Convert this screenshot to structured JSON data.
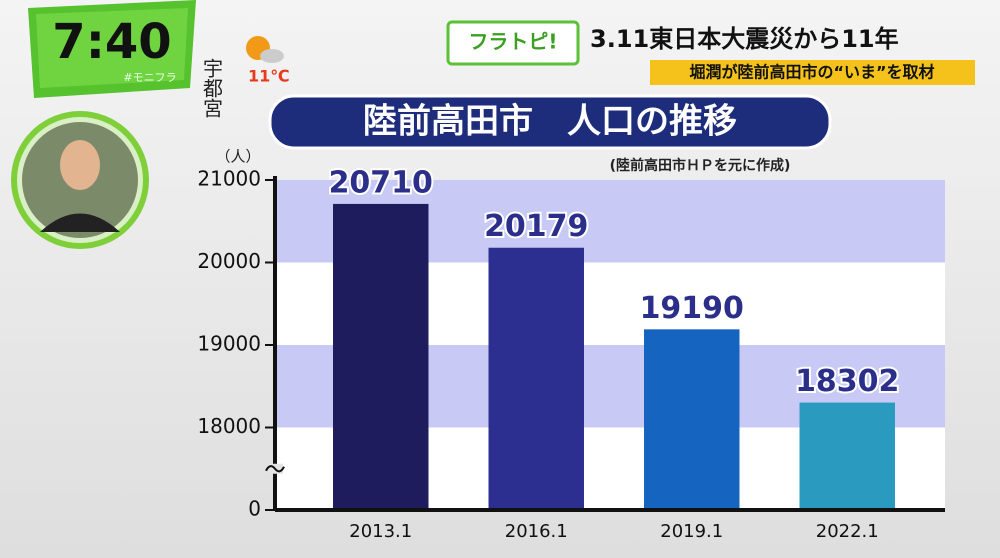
{
  "header": {
    "clock": "7:40",
    "location": "宇都宮",
    "temperature": "11℃",
    "hashtag": "#モニフラ",
    "logo": "フラトピ!",
    "headline": "3.11東日本大震災から11年",
    "subheadline": "堀潤が陸前高田市の“いま”を取材"
  },
  "chart_data": {
    "type": "bar",
    "title": "陸前高田市　人口の推移",
    "subtitle": "(陸前高田市ＨＰを元に作成)",
    "y_label": "（人）",
    "categories": [
      "2013.1",
      "2016.1",
      "2019.1",
      "2022.1"
    ],
    "values": [
      20710,
      20179,
      19190,
      18302
    ],
    "colors": [
      "#1e1c5c",
      "#2c2f8f",
      "#1565c0",
      "#2a9bbf"
    ],
    "ylim": [
      0,
      21000
    ],
    "yticks": [
      0,
      18000,
      19000,
      20000,
      21000
    ],
    "axis_break": true,
    "band_color": "#c9c9f6"
  }
}
